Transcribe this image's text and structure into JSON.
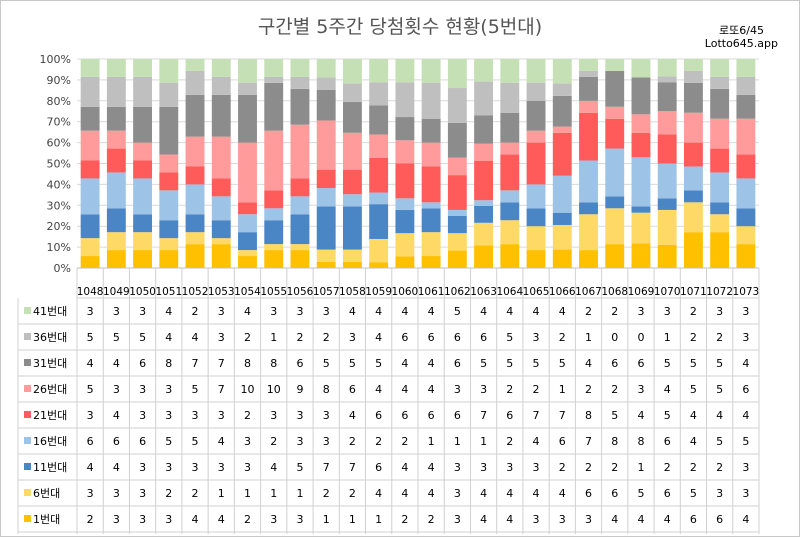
{
  "title": "구간별 5주간 당첨횟수 현황(5번대)",
  "brand": {
    "line1": "로또6/45",
    "line2": "Lotto645.app"
  },
  "chart_data": {
    "type": "bar",
    "stacked": "percent",
    "categories": [
      "1048",
      "1049",
      "1050",
      "1051",
      "1052",
      "1053",
      "1054",
      "1055",
      "1056",
      "1057",
      "1058",
      "1059",
      "1060",
      "1061",
      "1062",
      "1063",
      "1064",
      "1065",
      "1066",
      "1067",
      "1068",
      "1069",
      "1070",
      "1071",
      "1072",
      "1073"
    ],
    "ylim": [
      0,
      100
    ],
    "yticks": [
      "0%",
      "10%",
      "20%",
      "30%",
      "40%",
      "50%",
      "60%",
      "70%",
      "80%",
      "90%",
      "100%"
    ],
    "grid": true,
    "legend": "table-below",
    "series": [
      {
        "name": "1번대",
        "color": "#FFC000",
        "values": [
          2,
          3,
          3,
          3,
          4,
          4,
          2,
          3,
          3,
          1,
          1,
          1,
          2,
          2,
          3,
          4,
          4,
          3,
          3,
          3,
          4,
          4,
          4,
          6,
          6,
          4
        ]
      },
      {
        "name": "6번대",
        "color": "#FFD966",
        "values": [
          3,
          3,
          3,
          2,
          2,
          1,
          1,
          1,
          1,
          2,
          2,
          4,
          4,
          4,
          3,
          4,
          4,
          4,
          4,
          6,
          6,
          5,
          6,
          5,
          3,
          3
        ]
      },
      {
        "name": "11번대",
        "color": "#4A86C5",
        "values": [
          4,
          4,
          3,
          3,
          3,
          3,
          3,
          4,
          5,
          7,
          7,
          6,
          4,
          4,
          3,
          3,
          3,
          3,
          2,
          2,
          2,
          1,
          2,
          2,
          2,
          3
        ]
      },
      {
        "name": "16번대",
        "color": "#9DC3E6",
        "values": [
          6,
          6,
          6,
          5,
          5,
          4,
          3,
          2,
          3,
          3,
          2,
          2,
          2,
          1,
          1,
          1,
          2,
          4,
          6,
          7,
          8,
          8,
          6,
          4,
          5,
          5
        ]
      },
      {
        "name": "21번대",
        "color": "#FF5B5B",
        "values": [
          3,
          4,
          3,
          3,
          3,
          3,
          2,
          3,
          3,
          3,
          4,
          6,
          6,
          6,
          6,
          7,
          6,
          7,
          7,
          8,
          5,
          4,
          5,
          4,
          4,
          4
        ]
      },
      {
        "name": "26번대",
        "color": "#FF9B9B",
        "values": [
          5,
          3,
          3,
          3,
          5,
          7,
          10,
          10,
          9,
          8,
          6,
          4,
          4,
          4,
          3,
          3,
          2,
          2,
          1,
          2,
          2,
          3,
          4,
          5,
          5,
          6
        ]
      },
      {
        "name": "31번대",
        "color": "#8C8C8C",
        "values": [
          4,
          4,
          6,
          8,
          7,
          7,
          8,
          8,
          6,
          5,
          5,
          5,
          4,
          4,
          6,
          5,
          5,
          5,
          5,
          4,
          6,
          6,
          5,
          5,
          5,
          4
        ]
      },
      {
        "name": "36번대",
        "color": "#BFBFBF",
        "values": [
          5,
          5,
          5,
          4,
          4,
          3,
          2,
          1,
          2,
          2,
          3,
          4,
          6,
          6,
          6,
          6,
          5,
          3,
          2,
          1,
          0,
          0,
          1,
          2,
          2,
          3
        ]
      },
      {
        "name": "41번대",
        "color": "#C5E0B4",
        "values": [
          3,
          3,
          3,
          4,
          2,
          3,
          4,
          3,
          3,
          3,
          4,
          4,
          4,
          4,
          5,
          4,
          4,
          4,
          4,
          2,
          2,
          3,
          3,
          2,
          3,
          3
        ]
      }
    ]
  }
}
